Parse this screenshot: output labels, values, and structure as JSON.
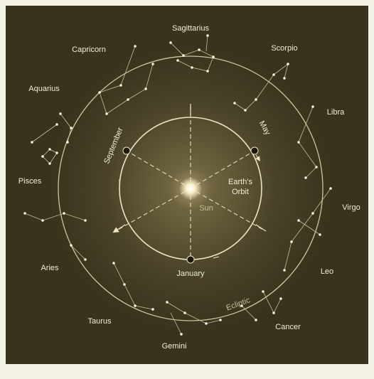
{
  "constellations": [
    "Sagittarius",
    "Capricorn",
    "Scorpio",
    "Aquarius",
    "Libra",
    "Pisces",
    "Virgo",
    "Aries",
    "Leo",
    "Taurus",
    "Cancer",
    "Gemini"
  ],
  "orbit_label": [
    "Earth's",
    "Orbit"
  ],
  "sun_label": "Sun",
  "ecliptic_label": "Ecliptic",
  "months": {
    "september": "September",
    "may": "May",
    "january": "January"
  }
}
